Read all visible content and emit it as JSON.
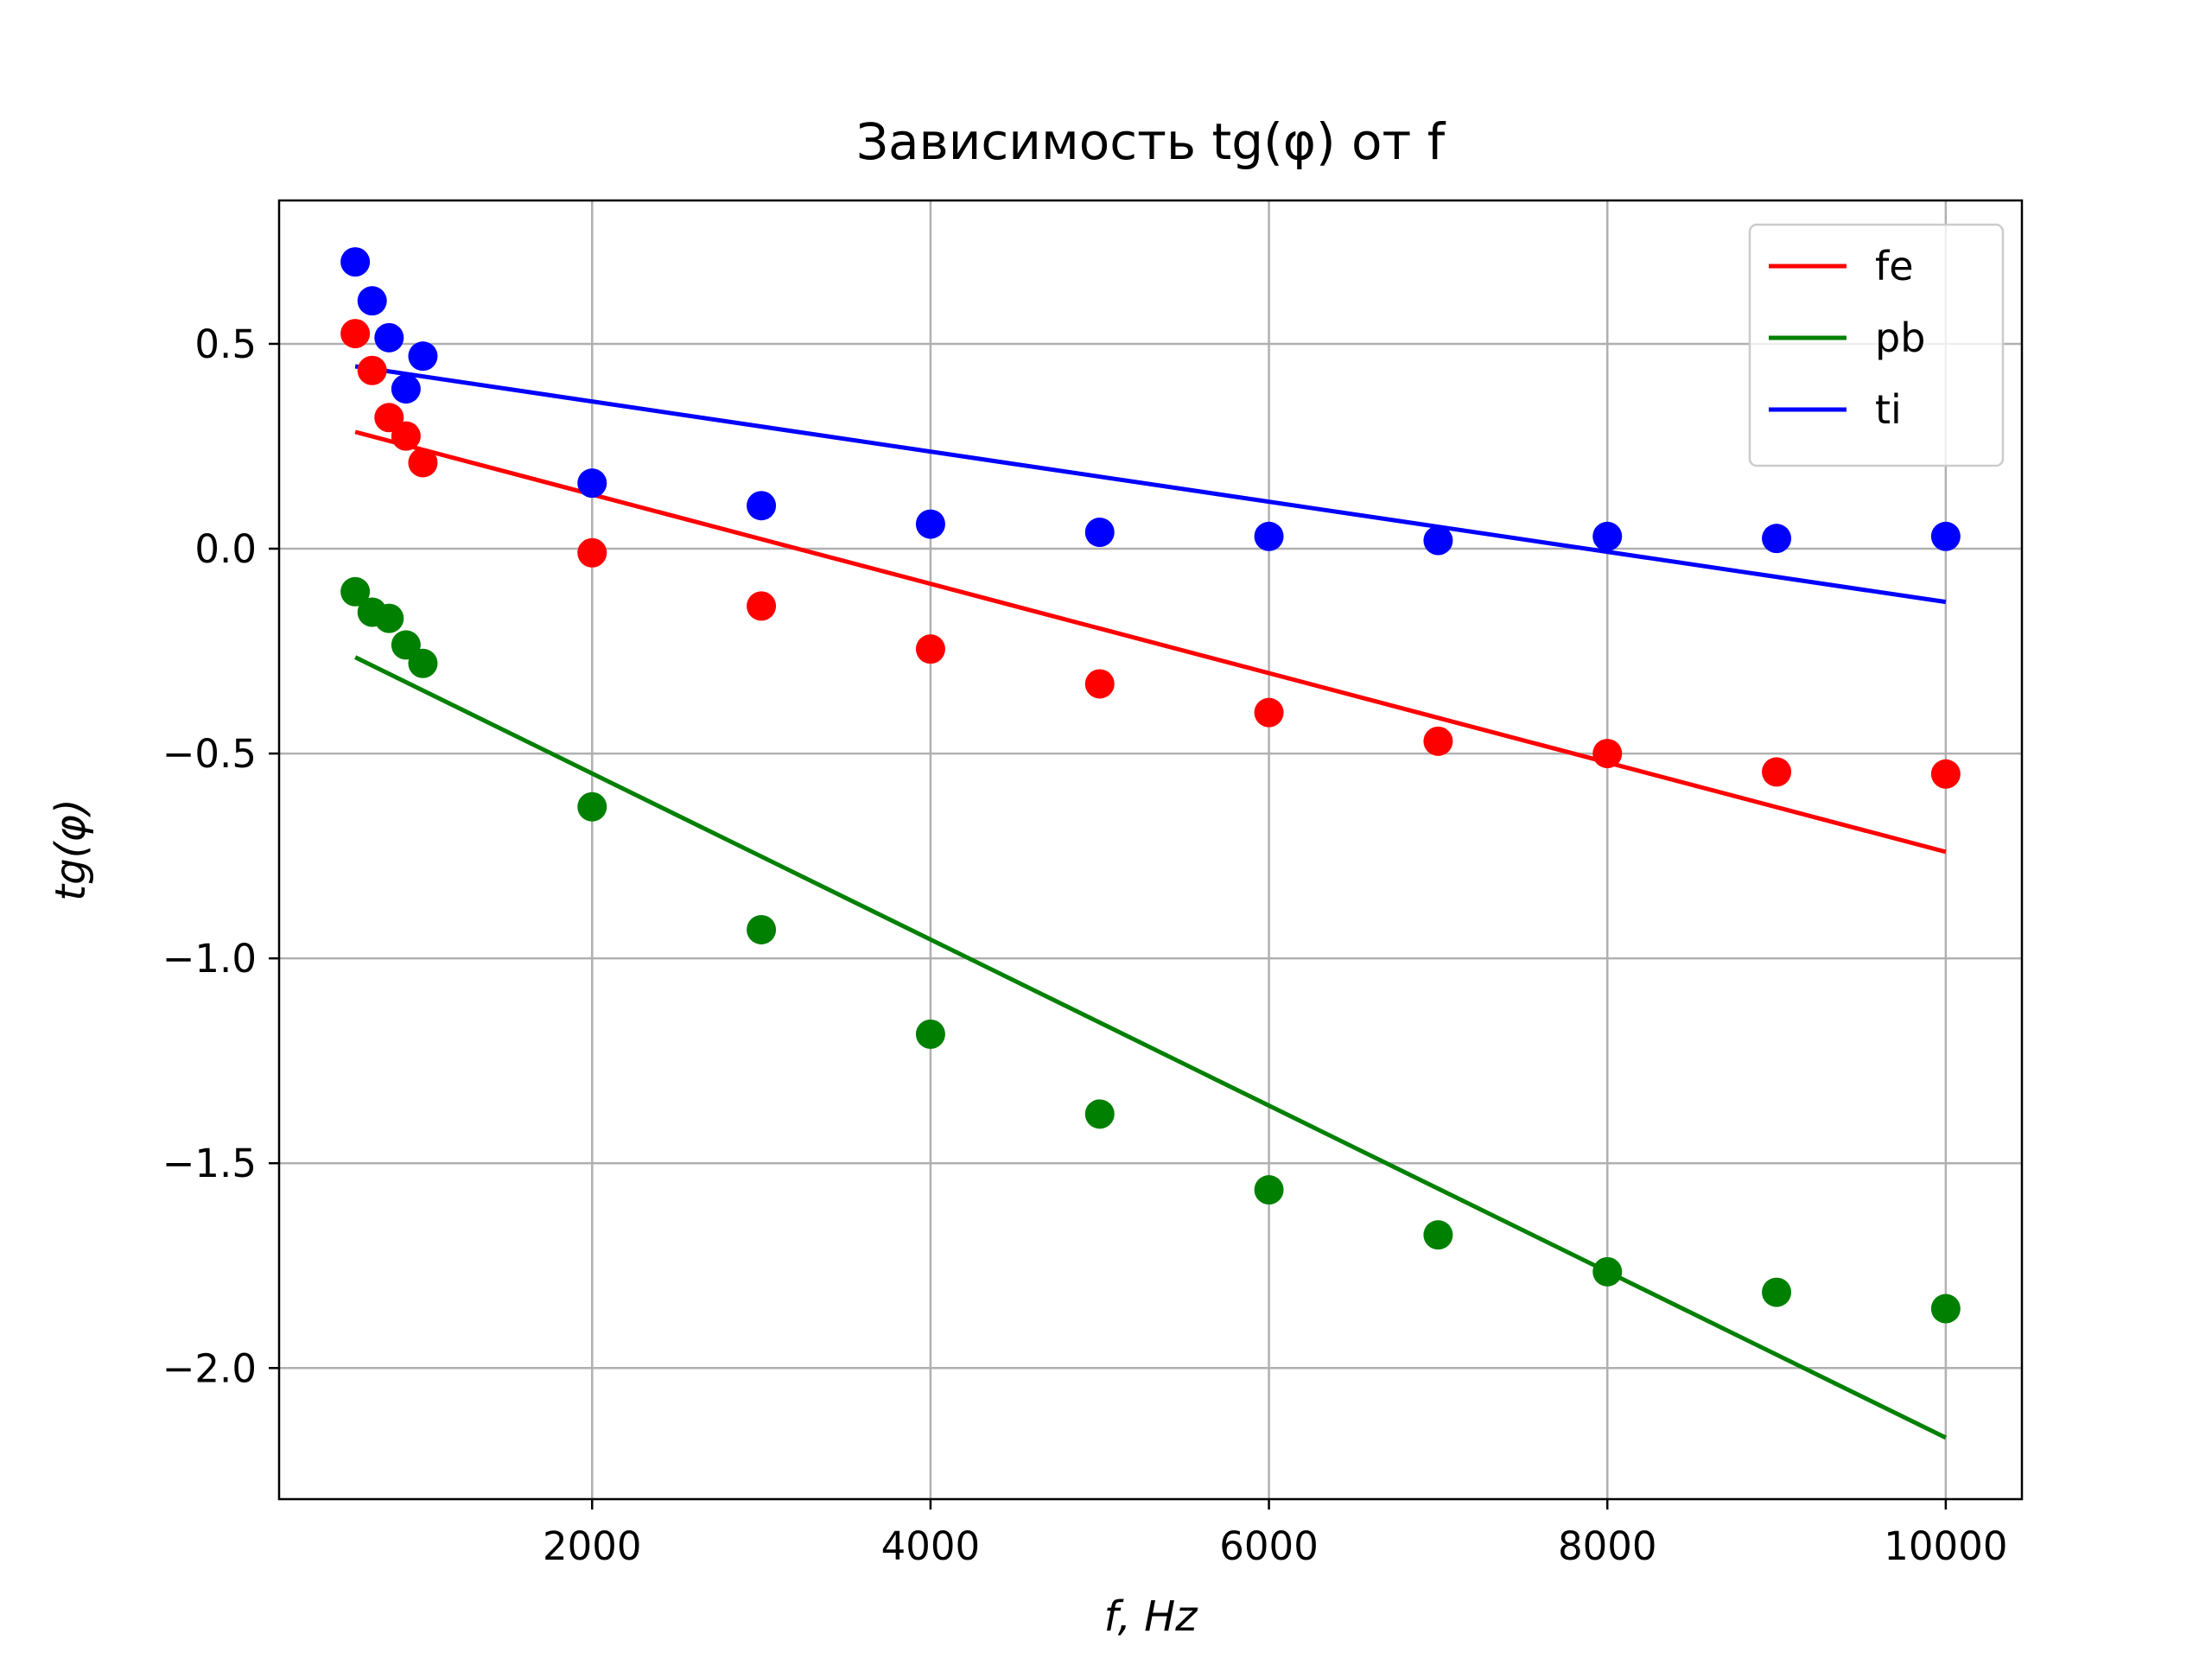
{
  "chart_data": {
    "type": "scatter",
    "title": "Зависимость tg(φ) от f",
    "xlabel": "f, Hz",
    "ylabel": "tg(φ)",
    "xlim": [
      150,
      10450
    ],
    "ylim": [
      -2.32,
      0.85
    ],
    "x_ticks": [
      2000,
      4000,
      6000,
      8000,
      10000
    ],
    "x_tick_labels": [
      "2000",
      "4000",
      "6000",
      "8000",
      "10000"
    ],
    "y_ticks": [
      0.5,
      0.0,
      -0.5,
      -1.0,
      -1.5,
      -2.0
    ],
    "y_tick_labels": [
      "0.5",
      "0.0",
      "−0.5",
      "−1.0",
      "−1.5",
      "−2.0"
    ],
    "grid": true,
    "legend_position": "top-right",
    "x": [
      600,
      700,
      800,
      900,
      1000,
      2000,
      3000,
      4000,
      5000,
      6000,
      7000,
      8000,
      9000,
      10000
    ],
    "series": [
      {
        "name": "fe",
        "color": "#ff0000",
        "points": [
          0.525,
          0.435,
          0.32,
          0.275,
          0.21,
          -0.01,
          -0.14,
          -0.245,
          -0.33,
          -0.4,
          -0.47,
          -0.5,
          -0.545,
          -0.55
        ],
        "fit_line": {
          "x": [
            600,
            10000
          ],
          "y": [
            0.285,
            -0.74
          ]
        }
      },
      {
        "name": "pb",
        "color": "#008000",
        "points": [
          -0.105,
          -0.155,
          -0.17,
          -0.235,
          -0.28,
          -0.63,
          -0.93,
          -1.185,
          -1.38,
          -1.565,
          -1.675,
          -1.765,
          -1.815,
          -1.855
        ],
        "fit_line": {
          "x": [
            600,
            10000
          ],
          "y": [
            -0.265,
            -2.17
          ]
        }
      },
      {
        "name": "ti",
        "color": "#0000ff",
        "points": [
          0.7,
          0.605,
          0.515,
          0.39,
          0.47,
          0.16,
          0.105,
          0.06,
          0.04,
          0.03,
          0.02,
          0.03,
          0.025,
          0.03
        ],
        "fit_line": {
          "x": [
            600,
            10000
          ],
          "y": [
            0.445,
            -0.13
          ]
        }
      }
    ]
  }
}
